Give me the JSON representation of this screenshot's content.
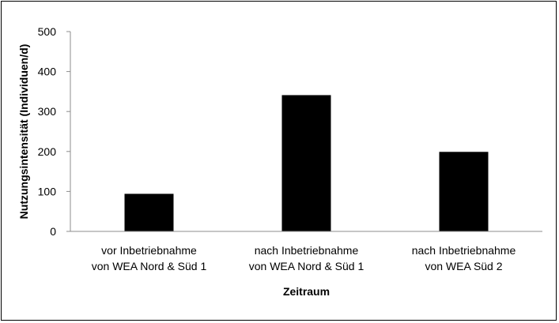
{
  "chart_data": {
    "type": "bar",
    "categories": [
      [
        "vor Inbetriebnahme",
        "von WEA Nord & Süd 1"
      ],
      [
        "nach Inbetriebnahme",
        "von WEA Nord & Süd 1"
      ],
      [
        "nach Inbetriebnahme",
        "von WEA Süd 2"
      ]
    ],
    "values": [
      94,
      341,
      199
    ],
    "xlabel": "Zeitraum",
    "ylabel": "Nutzungsintensität (Individuen/d)",
    "ylim": [
      0,
      500
    ],
    "yticks": [
      0,
      100,
      200,
      300,
      400,
      500
    ],
    "grid": false,
    "legend": "none",
    "bar_color": "#000000"
  }
}
